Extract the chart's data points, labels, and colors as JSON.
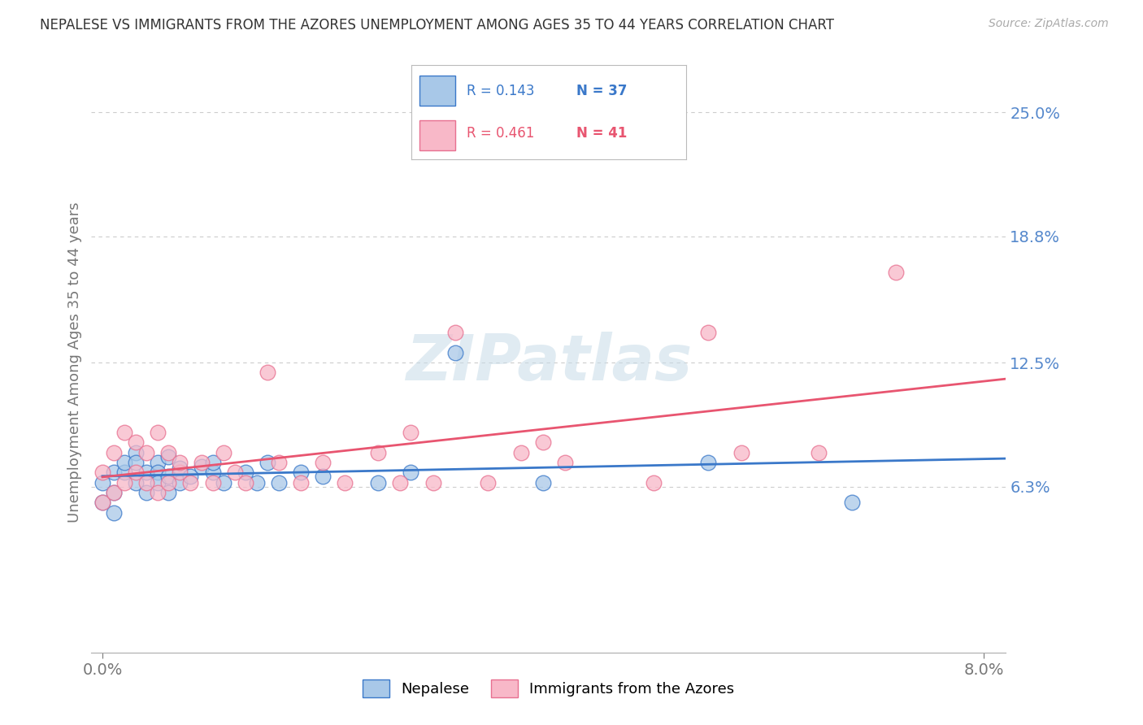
{
  "title": "NEPALESE VS IMMIGRANTS FROM THE AZORES UNEMPLOYMENT AMONG AGES 35 TO 44 YEARS CORRELATION CHART",
  "source": "Source: ZipAtlas.com",
  "ylabel": "Unemployment Among Ages 35 to 44 years",
  "xlim": [
    -0.001,
    0.082
  ],
  "ylim": [
    -0.02,
    0.27
  ],
  "yticks": [
    0.063,
    0.125,
    0.188,
    0.25
  ],
  "ytick_labels": [
    "6.3%",
    "12.5%",
    "18.8%",
    "25.0%"
  ],
  "xticks": [
    0.0,
    0.08
  ],
  "xtick_labels": [
    "0.0%",
    "8.0%"
  ],
  "r_nepalese": 0.143,
  "n_nepalese": 37,
  "r_azores": 0.461,
  "n_azores": 41,
  "color_nepalese": "#a8c8e8",
  "color_azores": "#f8b8c8",
  "line_color_nepalese": "#3a78c9",
  "line_color_azores": "#e8607080",
  "background_color": "#ffffff",
  "grid_color": "#cccccc",
  "nepalese_x": [
    0.0,
    0.0,
    0.001,
    0.001,
    0.001,
    0.002,
    0.002,
    0.003,
    0.003,
    0.003,
    0.004,
    0.004,
    0.005,
    0.005,
    0.005,
    0.006,
    0.006,
    0.006,
    0.007,
    0.007,
    0.008,
    0.009,
    0.01,
    0.01,
    0.011,
    0.013,
    0.014,
    0.015,
    0.016,
    0.018,
    0.02,
    0.025,
    0.028,
    0.032,
    0.04,
    0.055,
    0.068
  ],
  "nepalese_y": [
    0.065,
    0.055,
    0.07,
    0.06,
    0.05,
    0.07,
    0.075,
    0.08,
    0.075,
    0.065,
    0.07,
    0.06,
    0.075,
    0.07,
    0.065,
    0.078,
    0.068,
    0.06,
    0.072,
    0.065,
    0.068,
    0.073,
    0.07,
    0.075,
    0.065,
    0.07,
    0.065,
    0.075,
    0.065,
    0.07,
    0.068,
    0.065,
    0.07,
    0.13,
    0.065,
    0.075,
    0.055
  ],
  "azores_x": [
    0.0,
    0.0,
    0.001,
    0.001,
    0.002,
    0.002,
    0.003,
    0.003,
    0.004,
    0.004,
    0.005,
    0.005,
    0.006,
    0.006,
    0.007,
    0.007,
    0.008,
    0.009,
    0.01,
    0.011,
    0.012,
    0.013,
    0.015,
    0.016,
    0.018,
    0.02,
    0.022,
    0.025,
    0.027,
    0.028,
    0.03,
    0.032,
    0.035,
    0.038,
    0.04,
    0.042,
    0.05,
    0.055,
    0.058,
    0.065,
    0.072
  ],
  "azores_y": [
    0.055,
    0.07,
    0.06,
    0.08,
    0.065,
    0.09,
    0.07,
    0.085,
    0.065,
    0.08,
    0.06,
    0.09,
    0.065,
    0.08,
    0.07,
    0.075,
    0.065,
    0.075,
    0.065,
    0.08,
    0.07,
    0.065,
    0.12,
    0.075,
    0.065,
    0.075,
    0.065,
    0.08,
    0.065,
    0.09,
    0.065,
    0.14,
    0.065,
    0.08,
    0.085,
    0.075,
    0.065,
    0.14,
    0.08,
    0.08,
    0.17
  ]
}
